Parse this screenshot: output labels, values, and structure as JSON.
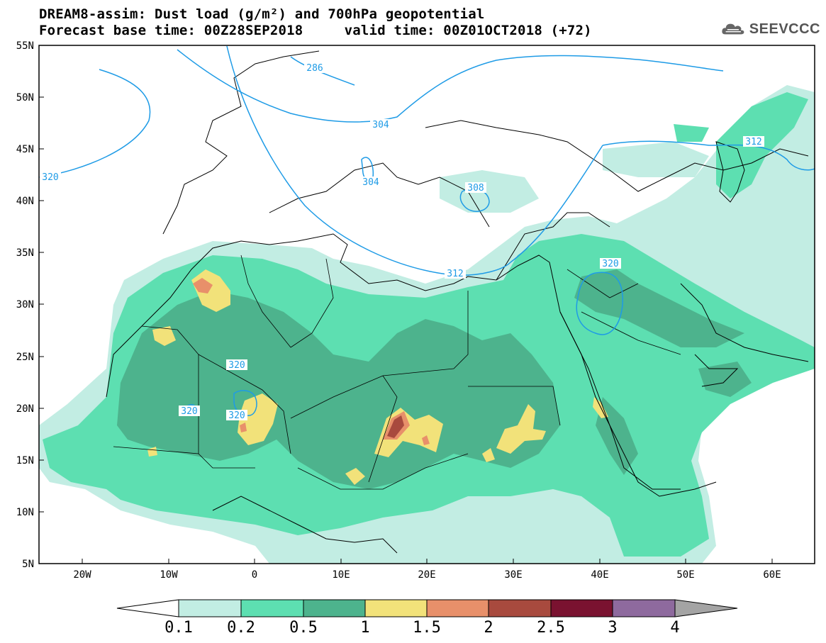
{
  "title": {
    "line1": "DREAM8-assim: Dust load (g/m²) and 700hPa geopotential",
    "line2": "Forecast base time: 00Z28SEP2018     valid time: 00Z01OCT2018 (+72)"
  },
  "logo": {
    "text": "SEEVCCC",
    "icon": "cloud-icon"
  },
  "map": {
    "lon_range": [
      -25,
      65
    ],
    "lat_range": [
      5,
      55
    ],
    "lon_ticks": [
      "20W",
      "10W",
      "0",
      "10E",
      "20E",
      "30E",
      "40E",
      "50E",
      "60E"
    ],
    "lat_ticks": [
      "55N",
      "50N",
      "45N",
      "40N",
      "35N",
      "30N",
      "25N",
      "20N",
      "15N",
      "10N",
      "5N"
    ],
    "contour_color": "#1e9be6",
    "contour_labels": [
      "286",
      "304",
      "304",
      "308",
      "312",
      "312",
      "320",
      "320",
      "320",
      "320",
      "320"
    ]
  },
  "colorbar": {
    "tick_labels": [
      "0.1",
      "0.2",
      "0.5",
      "1",
      "1.5",
      "2",
      "2.5",
      "3",
      "4"
    ],
    "colors": [
      "#c2ede3",
      "#5ddfb1",
      "#4db38d",
      "#f2e27a",
      "#e8906a",
      "#a84a3e",
      "#7a1230",
      "#8e6a9e"
    ],
    "under_color": "#ffffff",
    "over_color": "#a4a4a4"
  }
}
